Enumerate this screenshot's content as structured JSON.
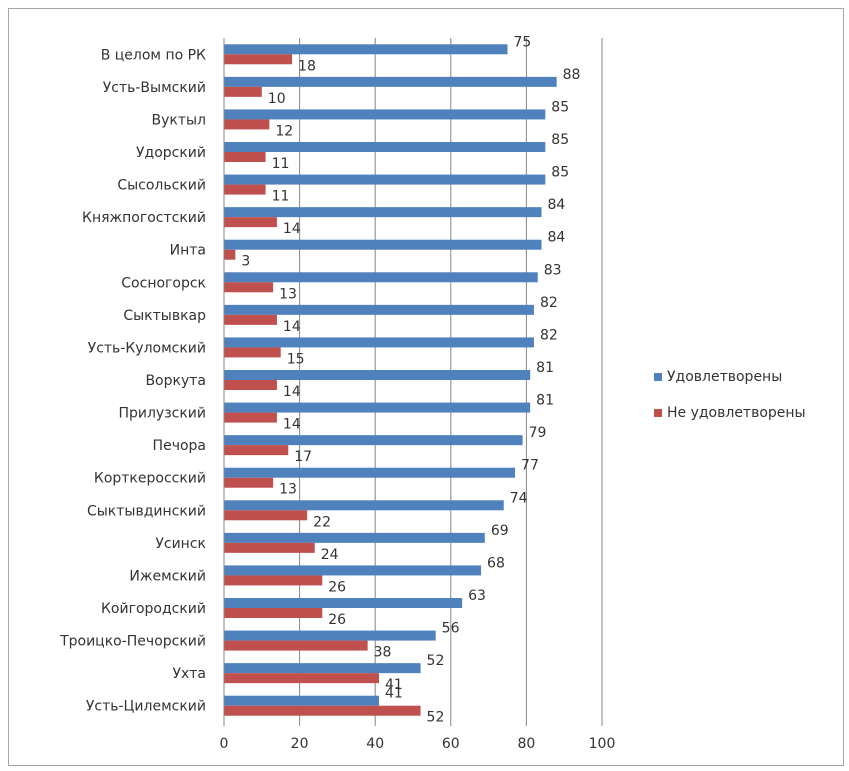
{
  "chart_data": {
    "type": "bar",
    "orientation": "horizontal",
    "categories": [
      "В целом по РК",
      "Усть-Вымский",
      "Вуктыл",
      "Удорский",
      "Сысольский",
      "Княжпогостский",
      "Инта",
      "Сосногорск",
      "Сыктывкар",
      "Усть-Куломский",
      "Воркута",
      "Прилузский",
      "Печора",
      "Корткеросский",
      "Сыктывдинский",
      "Усинск",
      "Ижемский",
      "Койгородский",
      "Троицко-Печорский",
      "Ухта",
      "Усть-Цилемский"
    ],
    "series": [
      {
        "name": "Удовлетворены",
        "color": "#4f81bd",
        "values": [
          75,
          88,
          85,
          85,
          85,
          84,
          84,
          83,
          82,
          82,
          81,
          81,
          79,
          77,
          74,
          69,
          68,
          63,
          56,
          52,
          41
        ]
      },
      {
        "name": "Не удовлетворены",
        "color": "#c0504d",
        "values": [
          18,
          10,
          12,
          11,
          11,
          14,
          3,
          13,
          14,
          15,
          14,
          14,
          17,
          13,
          22,
          24,
          26,
          26,
          38,
          41,
          52
        ]
      }
    ],
    "xlim": [
      0,
      100
    ],
    "xticks": [
      0,
      20,
      40,
      60,
      80,
      100
    ],
    "grid": "vertical major gridlines",
    "legend_position": "right"
  }
}
